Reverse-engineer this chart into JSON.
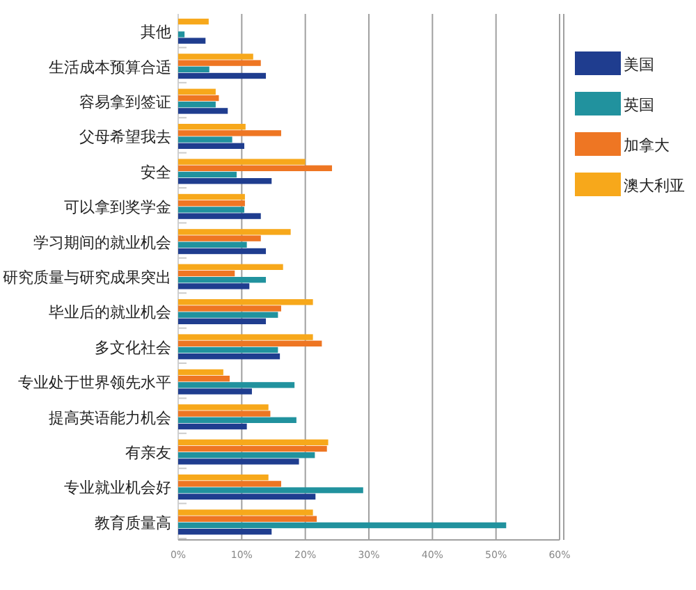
{
  "chart_data": {
    "type": "bar",
    "orientation": "horizontal",
    "categories": [
      "其他",
      "生活成本预算合适",
      "容易拿到签证",
      "父母希望我去",
      "安全",
      "可以拿到奖学金",
      "学习期间的就业机会",
      "研究质量与研究成果突出",
      "毕业后的就业机会",
      "多文化社会",
      "专业处于世界领先水平",
      "提高英语能力机会",
      "有亲友",
      "专业就业机会好",
      "教育质量高"
    ],
    "series": [
      {
        "name": "美国",
        "color": "#1f3d8f",
        "values": [
          4.3,
          13.8,
          7.8,
          10.4,
          14.7,
          13.0,
          13.8,
          11.2,
          13.8,
          16.0,
          11.6,
          10.8,
          19.0,
          21.6,
          14.7
        ]
      },
      {
        "name": "英国",
        "color": "#21929e",
        "values": [
          1.0,
          4.9,
          5.9,
          8.5,
          9.2,
          10.4,
          10.8,
          13.8,
          15.7,
          15.7,
          18.3,
          18.6,
          21.5,
          29.1,
          51.6
        ]
      },
      {
        "name": "加拿大",
        "color": "#ee7623",
        "values": [
          0,
          13.0,
          6.4,
          16.2,
          24.2,
          10.5,
          13.0,
          8.9,
          16.2,
          22.6,
          8.1,
          14.5,
          23.4,
          16.2,
          21.8
        ]
      },
      {
        "name": "澳大利亚",
        "color": "#f7a81b",
        "values": [
          4.8,
          11.8,
          5.9,
          10.6,
          20.0,
          10.5,
          17.7,
          16.5,
          21.2,
          21.2,
          7.1,
          14.2,
          23.6,
          14.2,
          21.2
        ]
      }
    ],
    "xlim": [
      0,
      60
    ],
    "xticks": [
      {
        "value": 0,
        "label": "0%"
      },
      {
        "value": 10,
        "label": "10%"
      },
      {
        "value": 20,
        "label": "20%"
      },
      {
        "value": 30,
        "label": "30%"
      },
      {
        "value": 40,
        "label": "40%"
      },
      {
        "value": 50,
        "label": "50%"
      },
      {
        "value": 60,
        "label": "60%"
      }
    ],
    "grid": "x",
    "legend": "right"
  }
}
